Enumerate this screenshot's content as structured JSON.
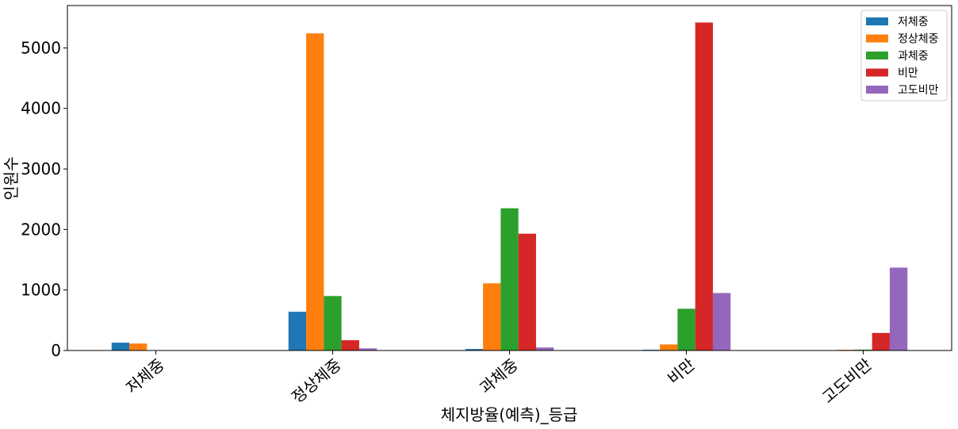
{
  "chart_data": {
    "type": "bar",
    "xlabel": "체지방율(예측)_등급",
    "ylabel": "인원수",
    "categories": [
      "저체중",
      "정상체중",
      "과체중",
      "비만",
      "고도비만"
    ],
    "ylim": [
      0,
      5700
    ],
    "yticks": [
      0,
      1000,
      2000,
      3000,
      4000,
      5000
    ],
    "grid": false,
    "legend_position": "top-right",
    "series": [
      {
        "name": "저체중",
        "color": "#1f77b4",
        "values": [
          130,
          640,
          25,
          12,
          0
        ]
      },
      {
        "name": "정상체중",
        "color": "#ff7f0e",
        "values": [
          115,
          5240,
          1110,
          100,
          12
        ]
      },
      {
        "name": "과체중",
        "color": "#2ca02c",
        "values": [
          0,
          900,
          2350,
          690,
          15
        ]
      },
      {
        "name": "비만",
        "color": "#d62728",
        "values": [
          0,
          170,
          1930,
          5420,
          290
        ]
      },
      {
        "name": "고도비만",
        "color": "#9467bd",
        "values": [
          0,
          35,
          50,
          950,
          1370
        ]
      }
    ]
  }
}
